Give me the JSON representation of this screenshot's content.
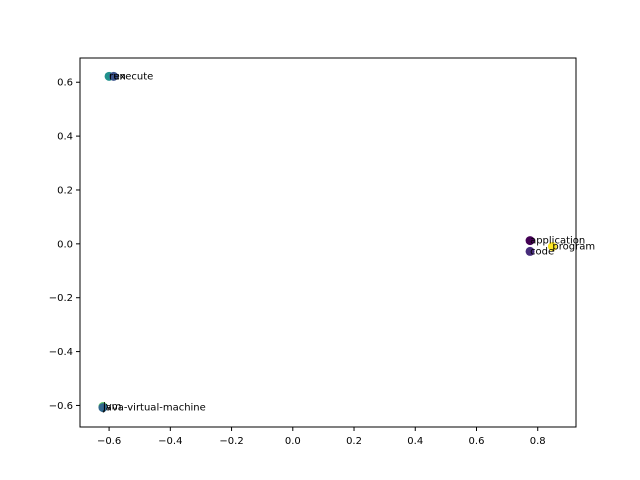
{
  "chart_data": {
    "type": "scatter",
    "title": "",
    "xlabel": "",
    "ylabel": "",
    "xlim": [
      -0.695,
      0.925
    ],
    "ylim": [
      -0.68,
      0.69
    ],
    "xticks": [
      -0.6,
      -0.4,
      -0.2,
      0.0,
      0.2,
      0.4,
      0.6,
      0.8
    ],
    "yticks": [
      -0.6,
      -0.4,
      -0.2,
      0.0,
      0.2,
      0.4,
      0.6
    ],
    "xtick_labels": [
      "−0.6",
      "−0.4",
      "−0.2",
      "0.0",
      "0.2",
      "0.4",
      "0.6",
      "0.8"
    ],
    "ytick_labels": [
      "−0.6",
      "−0.4",
      "−0.2",
      "0.0",
      "0.2",
      "0.4",
      "0.6"
    ],
    "grid": false,
    "points": [
      {
        "label": "run",
        "x": -0.6,
        "y": 0.622,
        "color": "#21918c"
      },
      {
        "label": "execute",
        "x": -0.585,
        "y": 0.622,
        "color": "#3b528b"
      },
      {
        "label": "application",
        "x": 0.775,
        "y": 0.012,
        "color": "#440154"
      },
      {
        "label": "program",
        "x": 0.848,
        "y": -0.01,
        "color": "#fde725"
      },
      {
        "label": "code",
        "x": 0.775,
        "y": -0.028,
        "color": "#472d7b"
      },
      {
        "label": "jvm",
        "x": -0.62,
        "y": -0.604,
        "color": "#5ec962"
      },
      {
        "label": "java-virtual-machine",
        "x": -0.62,
        "y": -0.608,
        "color": "#31688e"
      }
    ]
  }
}
